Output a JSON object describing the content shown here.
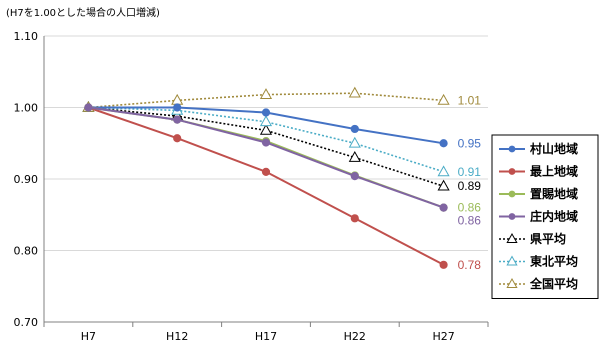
{
  "chart_data": {
    "type": "line",
    "unit_note": "(H7を1.00とした場合の人口増減)",
    "categories": [
      "H7",
      "H12",
      "H17",
      "H22",
      "H27"
    ],
    "ylim": [
      0.7,
      1.1
    ],
    "yticks": [
      "0.70",
      "0.80",
      "0.90",
      "1.00",
      "1.10"
    ],
    "grid": "horizontal",
    "legend_position": "right",
    "series": [
      {
        "name": "村山地域",
        "values": [
          1.0,
          1.0,
          0.993,
          0.97,
          0.95
        ],
        "color": "#4472C4",
        "style": "solid",
        "marker": "circle",
        "end_label": "0.95",
        "label_color": "#4472C4"
      },
      {
        "name": "最上地域",
        "values": [
          1.0,
          0.957,
          0.91,
          0.845,
          0.78
        ],
        "color": "#C0504D",
        "style": "solid",
        "marker": "circle",
        "end_label": "0.78",
        "label_color": "#C0504D"
      },
      {
        "name": "置賜地域",
        "values": [
          1.0,
          0.983,
          0.953,
          0.905,
          0.86
        ],
        "color": "#9BBB59",
        "style": "solid",
        "marker": "circle",
        "end_label": "0.86",
        "label_color": "#9BBB59"
      },
      {
        "name": "庄内地域",
        "values": [
          1.0,
          0.983,
          0.951,
          0.904,
          0.86
        ],
        "color": "#8064A2",
        "style": "solid",
        "marker": "circle",
        "end_label": "0.86",
        "label_color": "#8064A2"
      },
      {
        "name": "県平均",
        "values": [
          1.0,
          0.988,
          0.968,
          0.93,
          0.89
        ],
        "color": "#000000",
        "style": "dotted",
        "marker": "triangle",
        "end_label": "0.89",
        "label_color": "#000000"
      },
      {
        "name": "東北平均",
        "values": [
          1.0,
          0.996,
          0.98,
          0.95,
          0.91
        ],
        "color": "#4BACC6",
        "style": "dotted",
        "marker": "triangle",
        "end_label": "0.91",
        "label_color": "#4BACC6"
      },
      {
        "name": "全国平均",
        "values": [
          1.0,
          1.01,
          1.018,
          1.02,
          1.01
        ],
        "color": "#A08A3C",
        "style": "dotted",
        "marker": "triangle",
        "end_label": "1.01",
        "label_color": "#A08A3C"
      }
    ]
  }
}
